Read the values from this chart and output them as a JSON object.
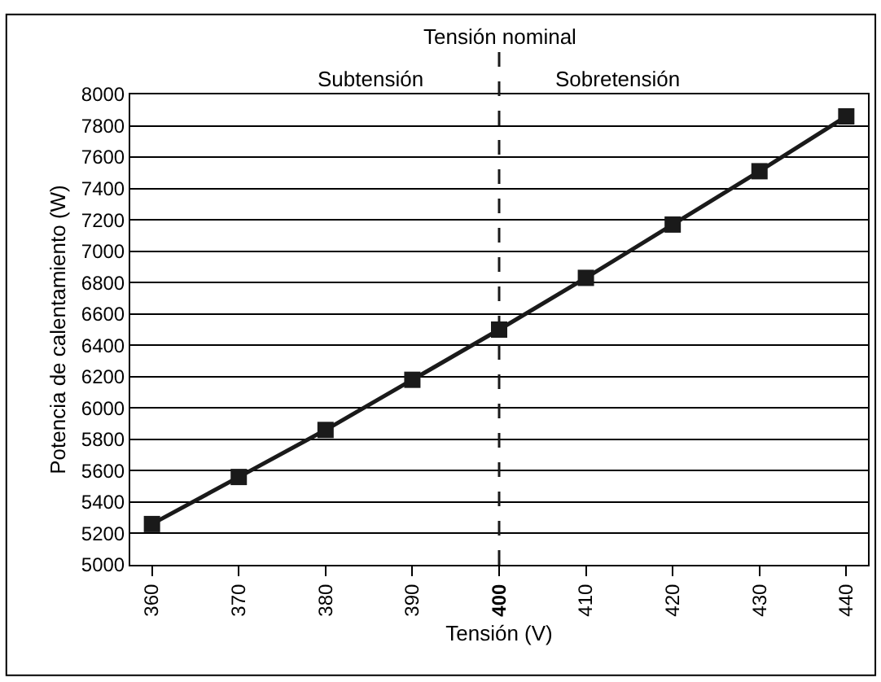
{
  "chart_data": {
    "type": "line",
    "xlabel": "Tensión (V)",
    "ylabel": "Potencia de calentamiento (W)",
    "x": [
      360,
      370,
      380,
      390,
      400,
      410,
      420,
      430,
      440
    ],
    "series": [
      {
        "color": "#1a1a1a",
        "values": [
          5260,
          5560,
          5860,
          6180,
          6500,
          6830,
          7170,
          7510,
          7860
        ]
      }
    ],
    "xlim": [
      357.5,
      442.5
    ],
    "xticks": [
      360,
      370,
      380,
      390,
      400,
      410,
      420,
      430,
      440
    ],
    "ylim": [
      5000,
      8000
    ],
    "yticks": [
      5000,
      5200,
      5400,
      5600,
      5800,
      6000,
      6200,
      6400,
      6600,
      6800,
      7000,
      7200,
      7400,
      7600,
      7800,
      8000
    ],
    "ref_lines": [
      {
        "axis": "x",
        "value": 400,
        "label": "Tensión nominal",
        "color": "#1a1a1a",
        "line_style": "dashed"
      }
    ],
    "annotations": [
      "Subtensión",
      "Sobretensión"
    ],
    "grid": "y",
    "marker": "square",
    "line_style": "solid"
  }
}
